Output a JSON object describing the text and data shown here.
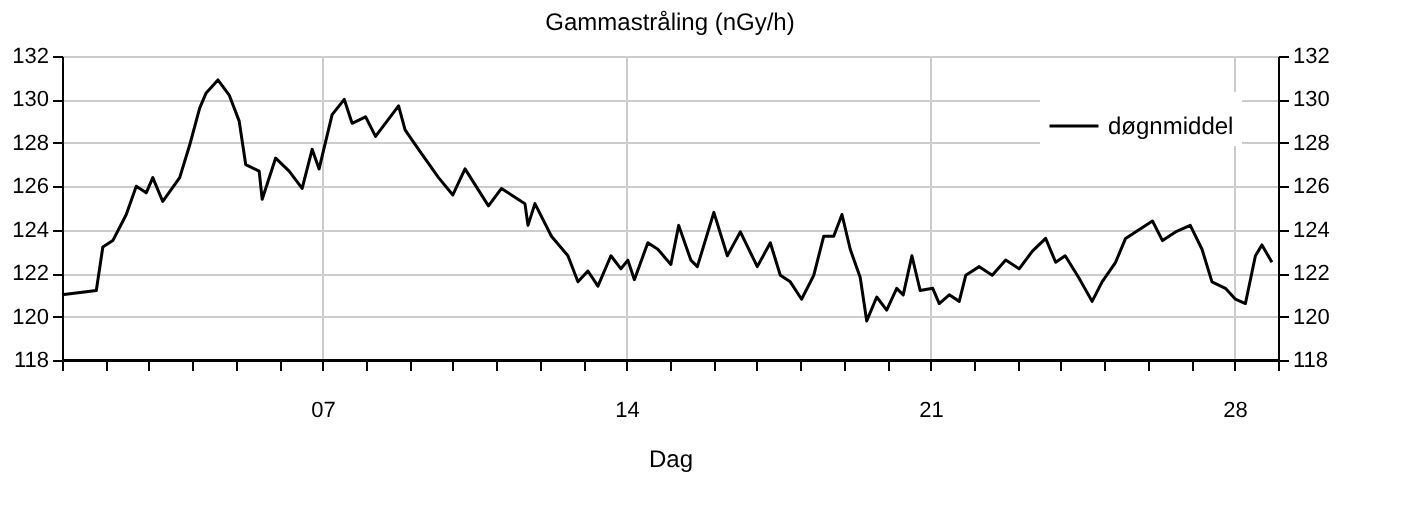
{
  "chart_data": {
    "type": "line",
    "title": "Gammastråling (nGy/h)",
    "xlabel": "Dag",
    "xlim": [
      1,
      29
    ],
    "xticks": [
      {
        "value": 1,
        "label": null
      },
      {
        "value": 2,
        "label": null
      },
      {
        "value": 3,
        "label": null
      },
      {
        "value": 4,
        "label": null
      },
      {
        "value": 5,
        "label": null
      },
      {
        "value": 6,
        "label": null
      },
      {
        "value": 7,
        "label": "07"
      },
      {
        "value": 8,
        "label": null
      },
      {
        "value": 9,
        "label": null
      },
      {
        "value": 10,
        "label": null
      },
      {
        "value": 11,
        "label": null
      },
      {
        "value": 12,
        "label": null
      },
      {
        "value": 13,
        "label": null
      },
      {
        "value": 14,
        "label": "14"
      },
      {
        "value": 15,
        "label": null
      },
      {
        "value": 16,
        "label": null
      },
      {
        "value": 17,
        "label": null
      },
      {
        "value": 18,
        "label": null
      },
      {
        "value": 19,
        "label": null
      },
      {
        "value": 20,
        "label": null
      },
      {
        "value": 21,
        "label": "21"
      },
      {
        "value": 22,
        "label": null
      },
      {
        "value": 23,
        "label": null
      },
      {
        "value": 24,
        "label": null
      },
      {
        "value": 25,
        "label": null
      },
      {
        "value": 26,
        "label": null
      },
      {
        "value": 27,
        "label": null
      },
      {
        "value": 28,
        "label": "28"
      },
      {
        "value": 29,
        "label": null
      }
    ],
    "ylim": [
      118,
      132
    ],
    "yticks": [
      118,
      120,
      122,
      124,
      126,
      128,
      130,
      132
    ],
    "y2lim": [
      118,
      132
    ],
    "y2ticks": [
      118,
      120,
      122,
      124,
      126,
      128,
      130,
      132
    ],
    "grid": true,
    "legend": "top right",
    "line_style": "solid",
    "marker": "none",
    "series": [
      {
        "name": "døgnmiddel",
        "color": "#000000",
        "x": [
          1.0,
          1.79,
          1.94,
          2.17,
          2.48,
          2.71,
          2.94,
          3.09,
          3.32,
          3.71,
          3.94,
          4.17,
          4.32,
          4.59,
          4.85,
          5.08,
          5.23,
          5.54,
          5.61,
          5.92,
          6.23,
          6.53,
          6.76,
          6.92,
          7.22,
          7.5,
          7.68,
          7.99,
          8.22,
          8.75,
          8.9,
          9.21,
          9.67,
          10.0,
          10.28,
          10.82,
          11.12,
          11.66,
          11.73,
          11.89,
          12.27,
          12.65,
          12.88,
          13.11,
          13.34,
          13.64,
          13.87,
          14.03,
          14.18,
          14.49,
          14.72,
          15.02,
          15.2,
          15.48,
          15.63,
          16.01,
          16.32,
          16.62,
          17.01,
          17.31,
          17.54,
          17.77,
          18.03,
          18.31,
          18.54,
          18.77,
          18.96,
          19.15,
          19.38,
          19.53,
          19.76,
          19.99,
          20.22,
          20.37,
          20.57,
          20.76,
          21.05,
          21.2,
          21.43,
          21.66,
          21.81,
          22.12,
          22.42,
          22.73,
          23.04,
          23.34,
          23.65,
          23.88,
          24.1,
          24.41,
          24.72,
          24.95,
          25.26,
          25.49,
          25.72,
          26.11,
          26.34,
          26.64,
          26.98,
          27.25,
          27.48,
          27.79,
          28.02,
          28.25,
          28.48,
          28.63,
          28.86
        ],
        "values": [
          121.0,
          121.2,
          123.2,
          123.5,
          124.7,
          126.0,
          125.7,
          126.4,
          125.3,
          126.4,
          127.9,
          129.6,
          130.3,
          130.9,
          130.2,
          129.0,
          127.0,
          126.7,
          125.4,
          127.3,
          126.7,
          125.9,
          127.7,
          126.8,
          129.3,
          130.0,
          128.9,
          129.2,
          128.3,
          129.7,
          128.6,
          127.7,
          126.4,
          125.6,
          126.8,
          125.1,
          125.9,
          125.2,
          124.2,
          125.2,
          123.7,
          122.8,
          121.6,
          122.1,
          121.4,
          122.8,
          122.2,
          122.6,
          121.7,
          123.4,
          123.1,
          122.4,
          124.2,
          122.6,
          122.3,
          124.8,
          122.8,
          123.9,
          122.3,
          123.4,
          121.9,
          121.6,
          120.8,
          121.9,
          123.7,
          123.7,
          124.7,
          123.1,
          121.8,
          119.8,
          120.9,
          120.3,
          121.3,
          121.0,
          122.8,
          121.2,
          121.3,
          120.6,
          121.0,
          120.7,
          121.9,
          122.3,
          121.9,
          122.6,
          122.2,
          123.0,
          123.6,
          122.5,
          122.8,
          121.8,
          120.7,
          121.6,
          122.5,
          123.6,
          123.9,
          124.4,
          123.5,
          123.9,
          124.2,
          123.1,
          121.6,
          121.3,
          120.8,
          120.6,
          122.8,
          123.3,
          122.5
        ]
      }
    ]
  }
}
